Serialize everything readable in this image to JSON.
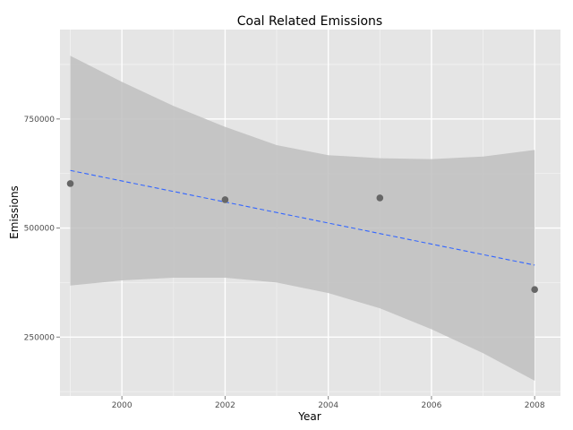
{
  "chart_data": {
    "type": "scatter",
    "title": "Coal Related Emissions",
    "xlabel": "Year",
    "ylabel": "Emissions",
    "xlim": [
      1998.8,
      2008.5
    ],
    "ylim": [
      115000,
      955000
    ],
    "x_ticks": [
      2000,
      2002,
      2004,
      2006,
      2008
    ],
    "x_tick_labels": [
      "2000",
      "2002",
      "2004",
      "2006",
      "2008"
    ],
    "y_ticks": [
      250000,
      500000,
      750000
    ],
    "y_tick_labels": [
      "250000",
      "500000",
      "750000"
    ],
    "grid": true,
    "points": [
      {
        "x": 1999,
        "y": 602000
      },
      {
        "x": 2002,
        "y": 565000
      },
      {
        "x": 2005,
        "y": 569000
      },
      {
        "x": 2008,
        "y": 359000
      }
    ],
    "trend_line": {
      "method": "linear",
      "style": "dashed",
      "color": "#3366ff",
      "start": {
        "x": 1999,
        "y": 632000
      },
      "end": {
        "x": 2008,
        "y": 415000
      }
    },
    "confidence_band": {
      "color": "#bfbfbf",
      "x": [
        1999,
        2000,
        2001,
        2002,
        2003,
        2004,
        2005,
        2006,
        2007,
        2008
      ],
      "upper": [
        895000,
        835000,
        780000,
        732000,
        690000,
        667000,
        660000,
        658000,
        664000,
        679000
      ],
      "lower": [
        368000,
        380000,
        386000,
        386000,
        375000,
        351000,
        316000,
        268000,
        213000,
        150000
      ]
    },
    "colors": {
      "panel_background": "#e5e5e5",
      "grid_major": "#ffffff",
      "grid_minor": "#f2f2f2",
      "points": "#666666"
    }
  }
}
